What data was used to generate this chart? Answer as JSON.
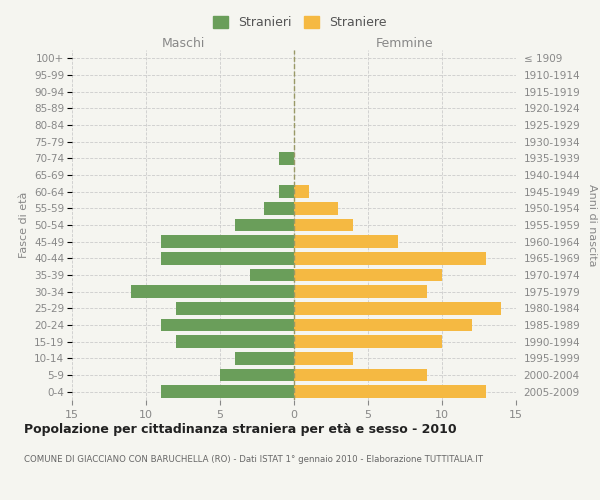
{
  "age_groups": [
    "0-4",
    "5-9",
    "10-14",
    "15-19",
    "20-24",
    "25-29",
    "30-34",
    "35-39",
    "40-44",
    "45-49",
    "50-54",
    "55-59",
    "60-64",
    "65-69",
    "70-74",
    "75-79",
    "80-84",
    "85-89",
    "90-94",
    "95-99",
    "100+"
  ],
  "birth_years": [
    "2005-2009",
    "2000-2004",
    "1995-1999",
    "1990-1994",
    "1985-1989",
    "1980-1984",
    "1975-1979",
    "1970-1974",
    "1965-1969",
    "1960-1964",
    "1955-1959",
    "1950-1954",
    "1945-1949",
    "1940-1944",
    "1935-1939",
    "1930-1934",
    "1925-1929",
    "1920-1924",
    "1915-1919",
    "1910-1914",
    "≤ 1909"
  ],
  "males": [
    9,
    5,
    4,
    8,
    9,
    8,
    11,
    3,
    9,
    9,
    4,
    2,
    1,
    0,
    1,
    0,
    0,
    0,
    0,
    0,
    0
  ],
  "females": [
    13,
    9,
    4,
    10,
    12,
    14,
    9,
    10,
    13,
    7,
    4,
    3,
    1,
    0,
    0,
    0,
    0,
    0,
    0,
    0,
    0
  ],
  "male_color": "#6a9e5a",
  "female_color": "#f5b942",
  "bar_height": 0.75,
  "xlim": 15,
  "title": "Popolazione per cittadinanza straniera per età e sesso - 2010",
  "subtitle": "COMUNE DI GIACCIANO CON BARUCHELLA (RO) - Dati ISTAT 1° gennaio 2010 - Elaborazione TUTTITALIA.IT",
  "legend_stranieri": "Stranieri",
  "legend_straniere": "Straniere",
  "ylabel_left": "Fasce di età",
  "ylabel_right": "Anni di nascita",
  "header_maschi": "Maschi",
  "header_femmine": "Femmine",
  "grid_color": "#cccccc",
  "bg_color": "#f5f5f0",
  "label_color": "#888888"
}
